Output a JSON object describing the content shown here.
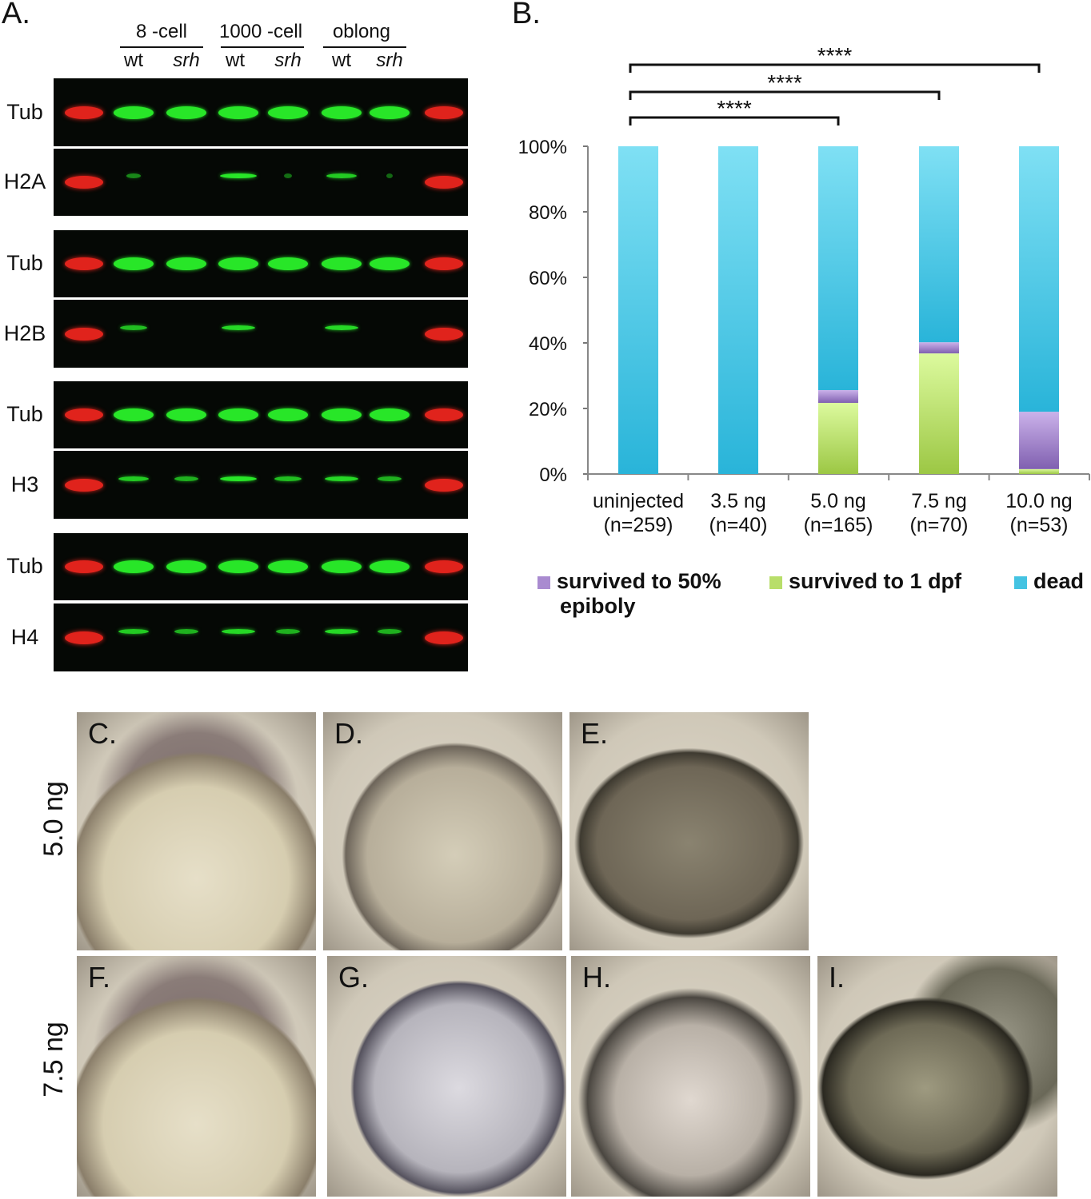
{
  "panel_a": {
    "label": "A.",
    "stages": [
      "8 -cell",
      "1000 -cell",
      "oblong"
    ],
    "genotypes": [
      "wt",
      "srh",
      "wt",
      "srh",
      "wt",
      "srh"
    ],
    "rows": [
      "Tub",
      "H2A",
      "Tub",
      "H2B",
      "Tub",
      "H3",
      "Tub",
      "H4"
    ]
  },
  "panel_b": {
    "label": "B."
  },
  "chart_data": {
    "type": "bar",
    "stacked": true,
    "categories": [
      "uninjected\n(n=259)",
      "3.5 ng\n(n=40)",
      "5.0 ng\n(n=165)",
      "7.5 ng\n(n=70)",
      "10.0 ng\n(n=53)"
    ],
    "category_lines": [
      [
        "uninjected",
        "(n=259)"
      ],
      [
        "3.5 ng",
        "(n=40)"
      ],
      [
        "5.0 ng",
        "(n=165)"
      ],
      [
        "7.5 ng",
        "(n=70)"
      ],
      [
        "10.0 ng",
        "(n=53)"
      ]
    ],
    "series": [
      {
        "name": "survived to 1 dpf",
        "color": "#b8de6a",
        "values": [
          0,
          0,
          21.7,
          36.8,
          1.5
        ]
      },
      {
        "name": "survived to 50% epiboly",
        "color": "#a98bd0",
        "values": [
          0,
          0,
          3.9,
          3.4,
          17.5
        ]
      },
      {
        "name": "dead",
        "color": "#44c3e2",
        "values": [
          100,
          100,
          74.4,
          59.8,
          81.0
        ]
      }
    ],
    "yticks": [
      "0%",
      "20%",
      "40%",
      "60%",
      "80%",
      "100%"
    ],
    "ylim": [
      0,
      100
    ],
    "significance": [
      {
        "from": 0,
        "to": 2,
        "label": "****"
      },
      {
        "from": 0,
        "to": 3,
        "label": "****"
      },
      {
        "from": 0,
        "to": 4,
        "label": "****"
      }
    ],
    "legend": [
      {
        "text": "survived to 50%",
        "text2": "epiboly",
        "color": "#a98bd0"
      },
      {
        "text": "survived to 1 dpf",
        "color": "#b8de6a"
      },
      {
        "text": "dead",
        "color": "#44c3e2"
      }
    ],
    "legend_position": "bottom"
  },
  "photos": {
    "row_labels": [
      "5.0 ng",
      "7.5 ng"
    ],
    "panels": [
      "C.",
      "D.",
      "E.",
      "F.",
      "G.",
      "H.",
      "I."
    ]
  }
}
